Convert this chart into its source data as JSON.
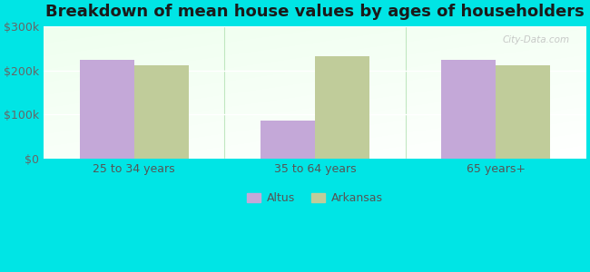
{
  "title": "Breakdown of mean house values by ages of householders",
  "categories": [
    "25 to 34 years",
    "35 to 64 years",
    "65 years+"
  ],
  "altus_values": [
    225000,
    87000,
    225000
  ],
  "arkansas_values": [
    212000,
    232000,
    212000
  ],
  "altus_color": "#c4a8d8",
  "arkansas_color": "#c0cc9a",
  "ylim": [
    0,
    300000
  ],
  "yticks": [
    0,
    100000,
    200000,
    300000
  ],
  "ytick_labels": [
    "$0",
    "$100k",
    "$200k",
    "$300k"
  ],
  "background_color": "#00e5e5",
  "legend_labels": [
    "Altus",
    "Arkansas"
  ],
  "bar_width": 0.3,
  "title_fontsize": 13,
  "tick_fontsize": 9,
  "legend_fontsize": 9,
  "watermark_text": "City-Data.com"
}
